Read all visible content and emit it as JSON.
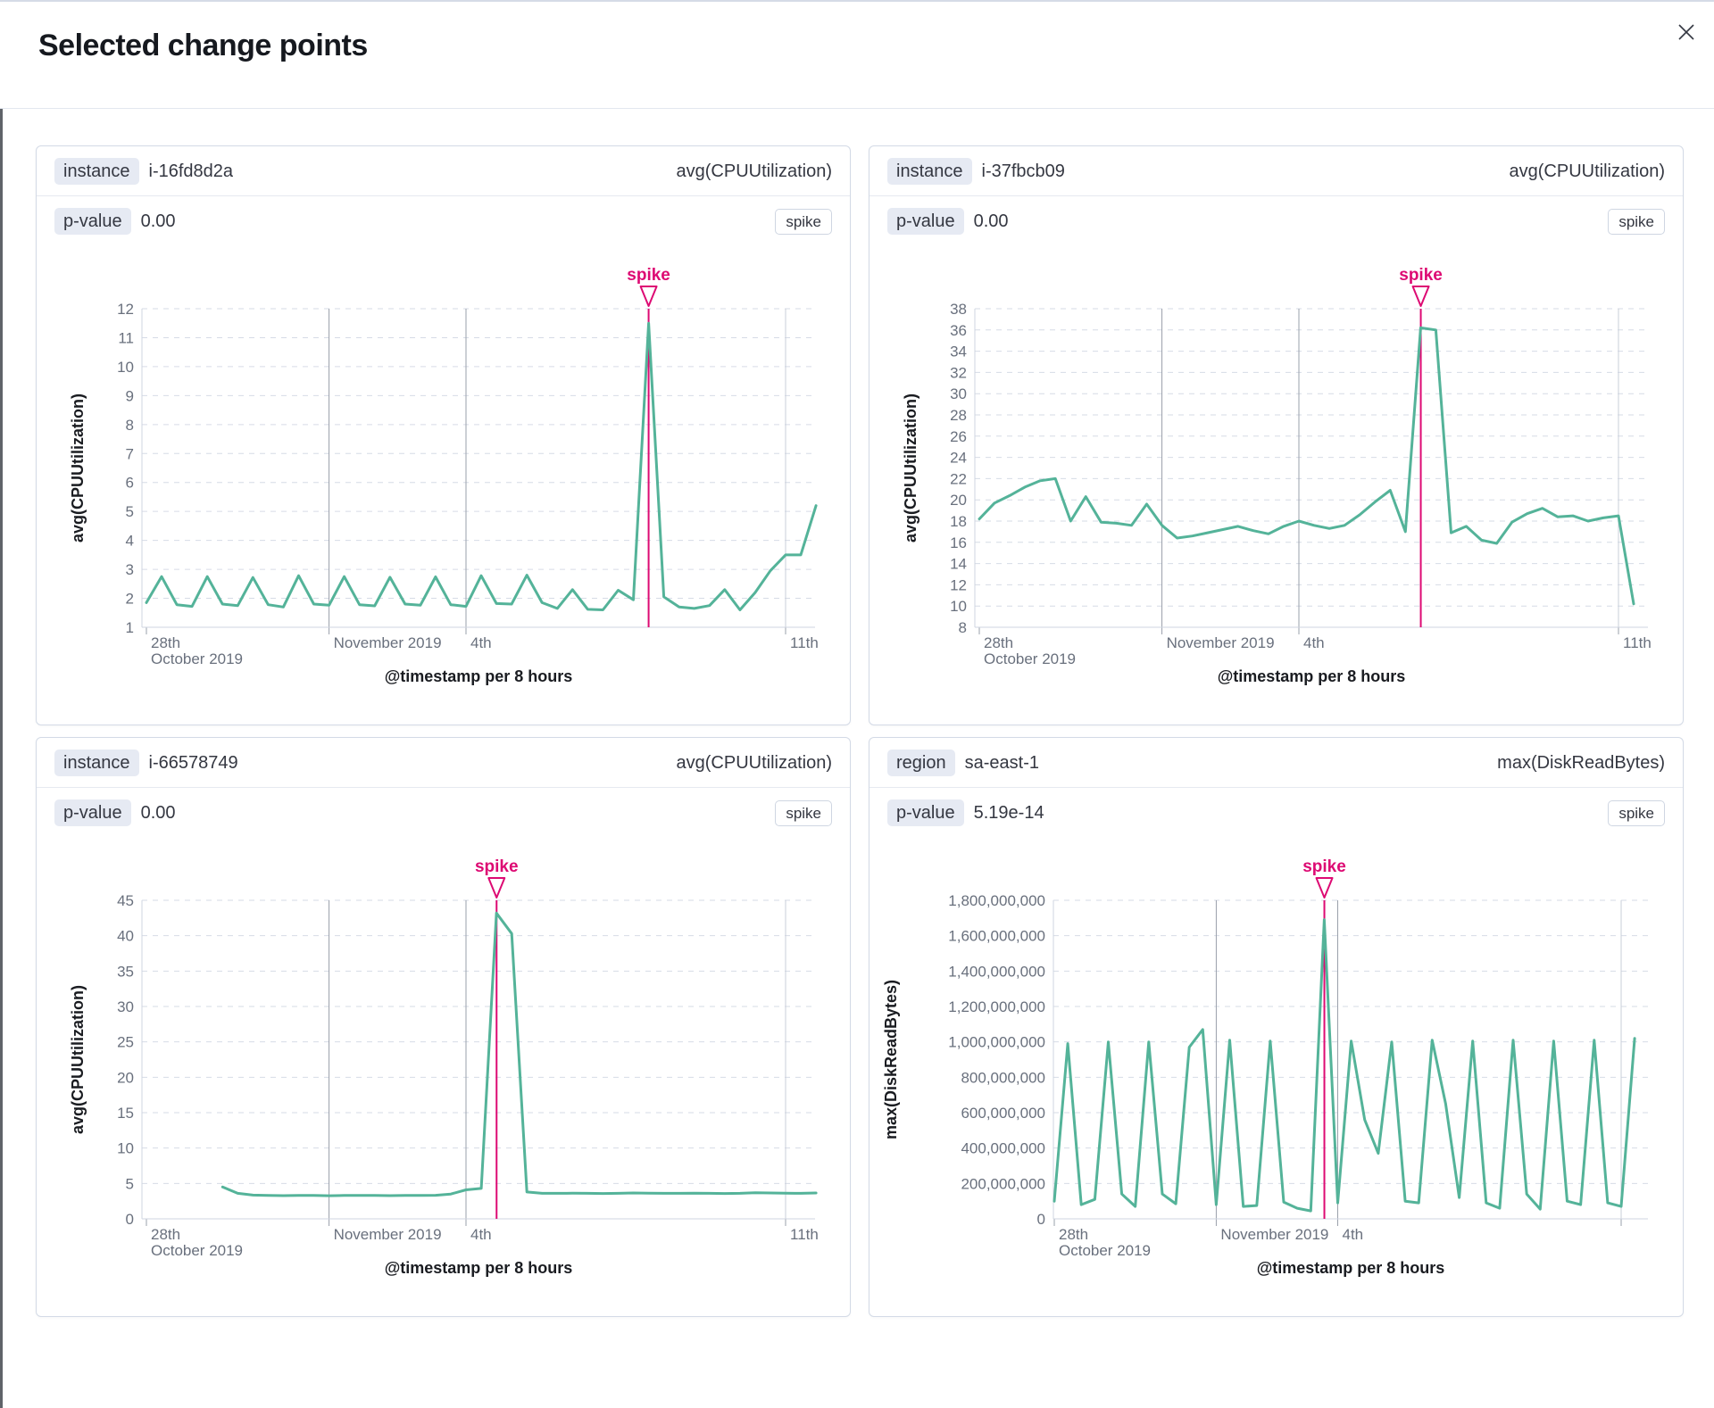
{
  "modal": {
    "title": "Selected change points",
    "close_icon": "close-x"
  },
  "colors": {
    "series_line": "#54b399",
    "annotation": "#dd0a73",
    "grid_dashed": "#d6dbe6",
    "grid_vertical_dark": "#9aa0ab",
    "grid_vertical_light": "#c9cfda",
    "axis_line": "#cfd5e0"
  },
  "cards": [
    {
      "badge_label": "instance",
      "badge_value": "i-16fd8d2a",
      "metric": "avg(CPUUtilization)",
      "pvalue_label": "p-value",
      "pvalue": "0.00",
      "chip": "spike",
      "chart_data": {
        "type": "line",
        "ylabel": "avg(CPUUtilization)",
        "xlabel": "@timestamp per 8 hours",
        "ylim": [
          1,
          12
        ],
        "ytick_step": 1,
        "ytick_format": "plain",
        "grid": true,
        "x_start_day": 0,
        "x_step_days": 0.33333,
        "x_day_zero": "2019-10-28",
        "xticks": [
          {
            "day": 0,
            "lines": [
              "28th",
              "October 2019"
            ],
            "grid": "tick"
          },
          {
            "day": 4,
            "lines": [
              "November 2019"
            ],
            "grid": "dark"
          },
          {
            "day": 7,
            "lines": [
              "4th"
            ],
            "grid": "dark"
          },
          {
            "day": 14,
            "lines": [
              "11th"
            ],
            "grid": "light"
          }
        ],
        "annotation": {
          "label": "spike",
          "day": 11.0
        },
        "values": [
          1.85,
          2.75,
          1.78,
          1.72,
          2.75,
          1.8,
          1.75,
          2.72,
          1.78,
          1.7,
          2.78,
          1.8,
          1.76,
          2.75,
          1.78,
          1.74,
          2.73,
          1.8,
          1.76,
          2.74,
          1.78,
          1.72,
          2.78,
          1.82,
          1.8,
          2.8,
          1.85,
          1.65,
          2.3,
          1.62,
          1.6,
          2.28,
          1.95,
          11.5,
          2.05,
          1.7,
          1.65,
          1.75,
          2.3,
          1.6,
          2.2,
          2.95,
          3.5,
          3.5,
          5.2
        ]
      }
    },
    {
      "badge_label": "instance",
      "badge_value": "i-37fbcb09",
      "metric": "avg(CPUUtilization)",
      "pvalue_label": "p-value",
      "pvalue": "0.00",
      "chip": "spike",
      "chart_data": {
        "type": "line",
        "ylabel": "avg(CPUUtilization)",
        "xlabel": "@timestamp per 8 hours",
        "ylim": [
          8,
          38
        ],
        "ytick_step": 2,
        "ytick_format": "plain",
        "grid": true,
        "x_start_day": 0,
        "x_step_days": 0.33333,
        "x_day_zero": "2019-10-28",
        "xticks": [
          {
            "day": 0,
            "lines": [
              "28th",
              "October 2019"
            ],
            "grid": "tick"
          },
          {
            "day": 4,
            "lines": [
              "November 2019"
            ],
            "grid": "dark"
          },
          {
            "day": 7,
            "lines": [
              "4th"
            ],
            "grid": "dark"
          },
          {
            "day": 14,
            "lines": [
              "11th"
            ],
            "grid": "light"
          }
        ],
        "annotation": {
          "label": "spike",
          "day": 9.67
        },
        "values": [
          18.2,
          19.7,
          20.4,
          21.2,
          21.8,
          22.0,
          18.0,
          20.3,
          17.9,
          17.8,
          17.6,
          19.6,
          17.6,
          16.4,
          16.6,
          16.9,
          17.2,
          17.5,
          17.1,
          16.8,
          17.5,
          18.0,
          17.6,
          17.3,
          17.6,
          18.6,
          19.8,
          20.9,
          17.0,
          36.2,
          36.0,
          16.9,
          17.5,
          16.2,
          15.9,
          17.9,
          18.7,
          19.2,
          18.4,
          18.5,
          18.0,
          18.3,
          18.5,
          10.2
        ]
      }
    },
    {
      "badge_label": "instance",
      "badge_value": "i-66578749",
      "metric": "avg(CPUUtilization)",
      "pvalue_label": "p-value",
      "pvalue": "0.00",
      "chip": "spike",
      "chart_data": {
        "type": "line",
        "ylabel": "avg(CPUUtilization)",
        "xlabel": "@timestamp per 8 hours",
        "ylim": [
          0,
          45
        ],
        "ytick_step": 5,
        "ytick_format": "plain",
        "grid": true,
        "x_start_day": 1.667,
        "x_step_days": 0.33333,
        "x_day_zero": "2019-10-28",
        "xticks": [
          {
            "day": 0,
            "lines": [
              "28th",
              "October 2019"
            ],
            "grid": "tick"
          },
          {
            "day": 4,
            "lines": [
              "November 2019"
            ],
            "grid": "dark"
          },
          {
            "day": 7,
            "lines": [
              "4th"
            ],
            "grid": "dark"
          },
          {
            "day": 14,
            "lines": [
              "11th"
            ],
            "grid": "light"
          }
        ],
        "annotation": {
          "label": "spike",
          "day": 7.67
        },
        "values": [
          4.5,
          3.6,
          3.35,
          3.3,
          3.28,
          3.3,
          3.3,
          3.27,
          3.3,
          3.32,
          3.3,
          3.28,
          3.3,
          3.3,
          3.33,
          3.5,
          4.1,
          4.3,
          43.2,
          40.3,
          3.8,
          3.6,
          3.6,
          3.62,
          3.6,
          3.58,
          3.6,
          3.65,
          3.62,
          3.6,
          3.6,
          3.63,
          3.6,
          3.58,
          3.6,
          3.68,
          3.65,
          3.62,
          3.6,
          3.65
        ]
      }
    },
    {
      "badge_label": "region",
      "badge_value": "sa-east-1",
      "metric": "max(DiskReadBytes)",
      "pvalue_label": "p-value",
      "pvalue": "5.19e-14",
      "chip": "spike",
      "chart_data": {
        "type": "line",
        "ylabel": "max(DiskReadBytes)",
        "xlabel": "@timestamp per 8 hours",
        "ylim": [
          0,
          1800000000
        ],
        "ytick_step": 200000000,
        "ytick_format": "comma",
        "grid": true,
        "x_start_day": 0,
        "x_step_days": 0.33333,
        "x_day_zero": "2019-10-28",
        "xticks": [
          {
            "day": 0,
            "lines": [
              "28th",
              "October 2019"
            ],
            "grid": "tick"
          },
          {
            "day": 4,
            "lines": [
              "November 2019"
            ],
            "grid": "dark"
          },
          {
            "day": 7,
            "lines": [
              "4th"
            ],
            "grid": "dark"
          },
          {
            "day": 14,
            "lines": [],
            "grid": "light"
          }
        ],
        "annotation": {
          "label": "spike",
          "day": 6.67
        },
        "values": [
          100000000,
          990000000,
          80000000,
          110000000,
          1000000000,
          140000000,
          70000000,
          1000000000,
          140000000,
          85000000,
          970000000,
          1070000000,
          80000000,
          1010000000,
          70000000,
          75000000,
          1005000000,
          95000000,
          60000000,
          45000000,
          1690000000,
          90000000,
          1005000000,
          560000000,
          370000000,
          1000000000,
          100000000,
          90000000,
          1010000000,
          650000000,
          120000000,
          1005000000,
          90000000,
          60000000,
          1010000000,
          140000000,
          55000000,
          1005000000,
          100000000,
          80000000,
          1010000000,
          90000000,
          70000000,
          1020000000
        ]
      }
    }
  ]
}
